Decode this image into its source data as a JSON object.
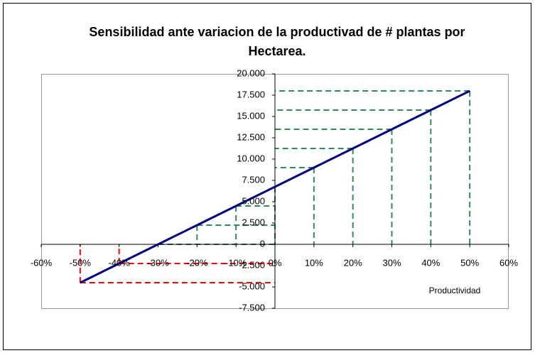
{
  "chart_data": {
    "type": "line",
    "title": "Sensibilidad ante variacion de la productivad de # plantas por Hectarea.",
    "x_label": "Productividad",
    "x": [
      -50,
      -40,
      -30,
      -20,
      -10,
      0,
      10,
      20,
      30,
      40,
      50
    ],
    "series": [
      {
        "name": "Productividad",
        "color": "#000080",
        "values": [
          -4500,
          -2250,
          0,
          2250,
          4500,
          6750,
          9000,
          11250,
          13500,
          15750,
          18000
        ]
      }
    ],
    "drop_colors": {
      "positive": "#2e8b57",
      "negative": "#ff0000"
    },
    "xlim": [
      -60,
      60
    ],
    "xticks": [
      {
        "value": -60,
        "label": "-60%"
      },
      {
        "value": -50,
        "label": "-50%"
      },
      {
        "value": -40,
        "label": "-40%"
      },
      {
        "value": -30,
        "label": "-30%"
      },
      {
        "value": -20,
        "label": "-20%"
      },
      {
        "value": -10,
        "label": "-10%"
      },
      {
        "value": 0,
        "label": "0%"
      },
      {
        "value": 10,
        "label": "10%"
      },
      {
        "value": 20,
        "label": "20%"
      },
      {
        "value": 30,
        "label": "30%"
      },
      {
        "value": 40,
        "label": "40%"
      },
      {
        "value": 50,
        "label": "50%"
      },
      {
        "value": 60,
        "label": "60%"
      }
    ],
    "ylim": [
      -7500,
      20000
    ],
    "yticks": [
      {
        "value": -7500,
        "label": "-7.500"
      },
      {
        "value": -5000,
        "label": "-5.000"
      },
      {
        "value": -2500,
        "label": "-2.500"
      },
      0,
      {
        "value": 2500,
        "label": "2.500"
      },
      {
        "value": 5000,
        "label": "5.000"
      },
      {
        "value": 7500,
        "label": "7.500"
      },
      {
        "value": 10000,
        "label": "10.000"
      },
      {
        "value": 12500,
        "label": "12.500"
      },
      {
        "value": 15000,
        "label": "15.000"
      },
      {
        "value": 17500,
        "label": "17.500"
      },
      {
        "value": 20000,
        "label": "20.000"
      }
    ]
  }
}
